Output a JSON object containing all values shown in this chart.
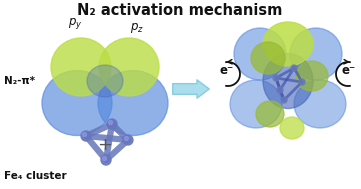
{
  "title": "N₂ activation mechanism",
  "title_fontsize": 10.5,
  "bg_color": "#ffffff",
  "label_N2pi": "N₂-π*",
  "label_Fe4": "Fe₄ cluster",
  "label_py": "$p_y$",
  "label_pz": "$p_z$",
  "label_eminus_left": "e⁻",
  "label_eminus_right": "e⁻",
  "blue_color": "#4466bb",
  "blue_color2": "#5588dd",
  "green_color": "#99bb33",
  "green_color2": "#bbdd44",
  "fe_color": "#6677bb",
  "fe_color_dark": "#4455aa",
  "arrow_color": "#aaddee",
  "arrow_color2": "#88ccdd",
  "dark_color": "#111111",
  "plus_color": "#555555"
}
